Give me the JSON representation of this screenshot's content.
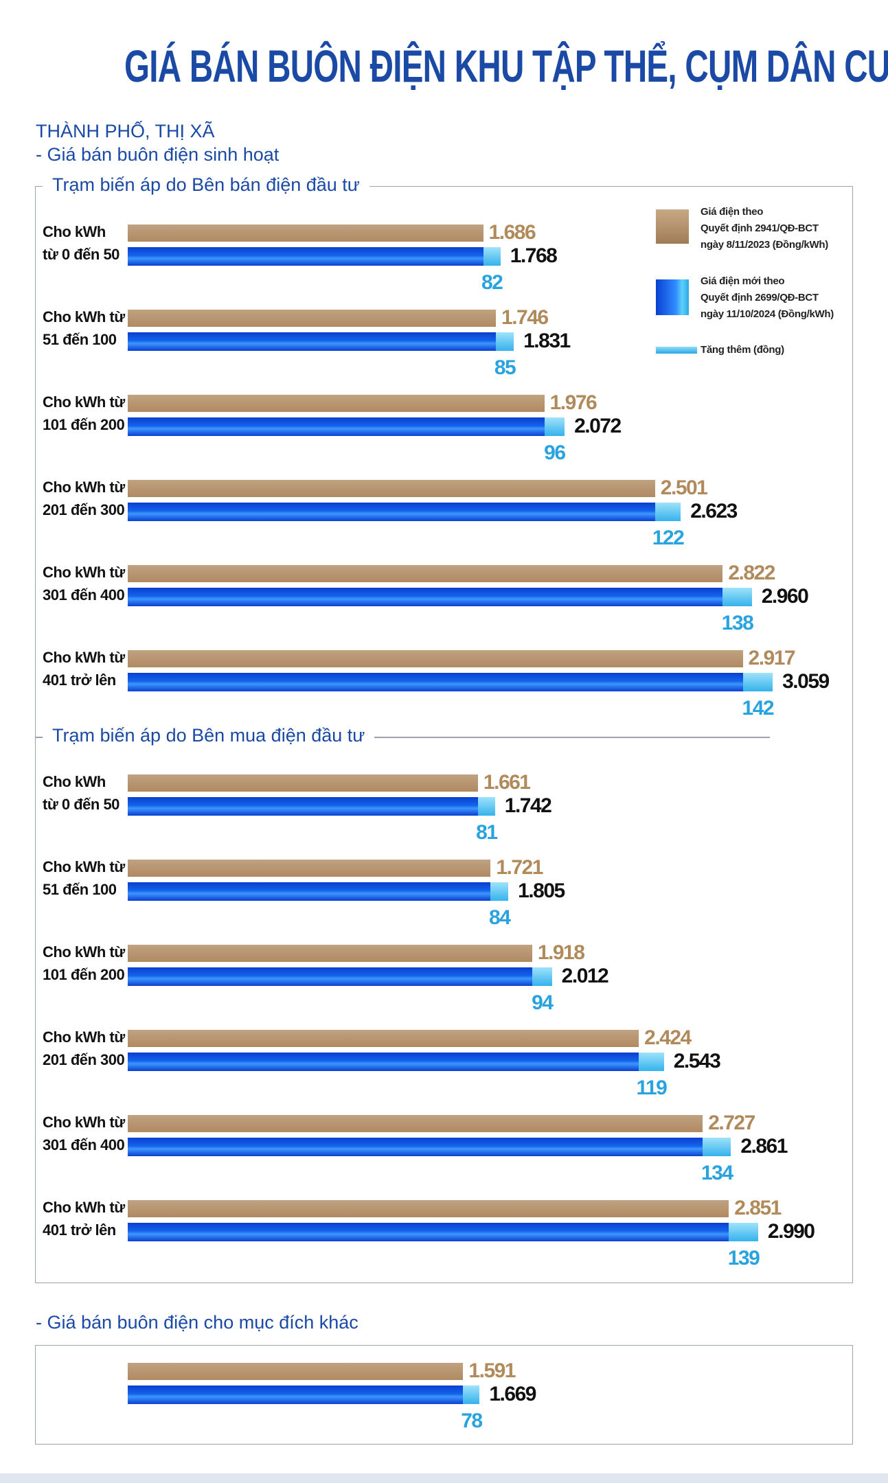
{
  "title": "GIÁ BÁN BUÔN ĐIỆN KHU TẬP THỂ, CỤM DÂN CƯ",
  "subtitle": "THÀNH PHỐ, THỊ XÃ",
  "section": "- Giá bán buôn điện sinh hoạt",
  "chart_data": [
    {
      "type": "bar",
      "title": "Trạm biến áp do Bên bán điện đầu tư",
      "categories": [
        "Cho kWh\ntừ 0 đến 50",
        "Cho kWh từ\n51 đến 100",
        "Cho kWh từ\n101 đến 200",
        "Cho kWh từ\n201 đến 300",
        "Cho kWh từ\n301 đến 400",
        "Cho kWh từ\n401 trở lên"
      ],
      "series": [
        {
          "name": "Giá điện theo\nQuyết định 2941/QĐ-BCT\nngày 8/11/2023 (Đồng/kWh)",
          "color": "#b08a62",
          "values": [
            1686,
            1746,
            1976,
            2501,
            2822,
            2917
          ],
          "value_labels": [
            "1.686",
            "1.746",
            "1.976",
            "2.501",
            "2.822",
            "2.917"
          ]
        },
        {
          "name": "Giá điện mới theo\nQuyết định 2699/QĐ-BCT\nngày 11/10/2024 (Đồng/kWh)",
          "color": "#1463ea",
          "values": [
            1768,
            1831,
            2072,
            2623,
            2960,
            3059
          ],
          "value_labels": [
            "1.768",
            "1.831",
            "2.072",
            "2.623",
            "2.960",
            "3.059"
          ]
        },
        {
          "name": "Tăng thêm (đồng)",
          "color": "#35b2ec",
          "values": [
            82,
            85,
            96,
            122,
            138,
            142
          ]
        }
      ]
    },
    {
      "type": "bar",
      "title": "Trạm biến áp do Bên mua điện đầu tư",
      "categories": [
        "Cho kWh\ntừ 0 đến 50",
        "Cho kWh từ\n51 đến 100",
        "Cho kWh từ\n101 đến 200",
        "Cho kWh từ\n201 đến 300",
        "Cho kWh từ\n301 đến 400",
        "Cho kWh từ\n401 trở lên"
      ],
      "series": [
        {
          "color": "#b08a62",
          "values": [
            1661,
            1721,
            1918,
            2424,
            2727,
            2851
          ],
          "value_labels": [
            "1.661",
            "1.721",
            "1.918",
            "2.424",
            "2.727",
            "2.851"
          ]
        },
        {
          "color": "#1463ea",
          "values": [
            1742,
            1805,
            2012,
            2543,
            2861,
            2990
          ],
          "value_labels": [
            "1.742",
            "1.805",
            "2.012",
            "2.543",
            "2.861",
            "2.990"
          ]
        },
        {
          "color": "#35b2ec",
          "values": [
            81,
            84,
            94,
            119,
            134,
            139
          ]
        }
      ]
    },
    {
      "type": "bar",
      "title": "- Giá bán buôn điện cho mục đích khác",
      "categories": [
        null
      ],
      "series": [
        {
          "color": "#b08a62",
          "values": [
            1591
          ],
          "value_labels": [
            "1.591"
          ]
        },
        {
          "color": "#1463ea",
          "values": [
            1669
          ],
          "value_labels": [
            "1.669"
          ]
        },
        {
          "color": "#35b2ec",
          "values": [
            78
          ]
        }
      ]
    }
  ]
}
